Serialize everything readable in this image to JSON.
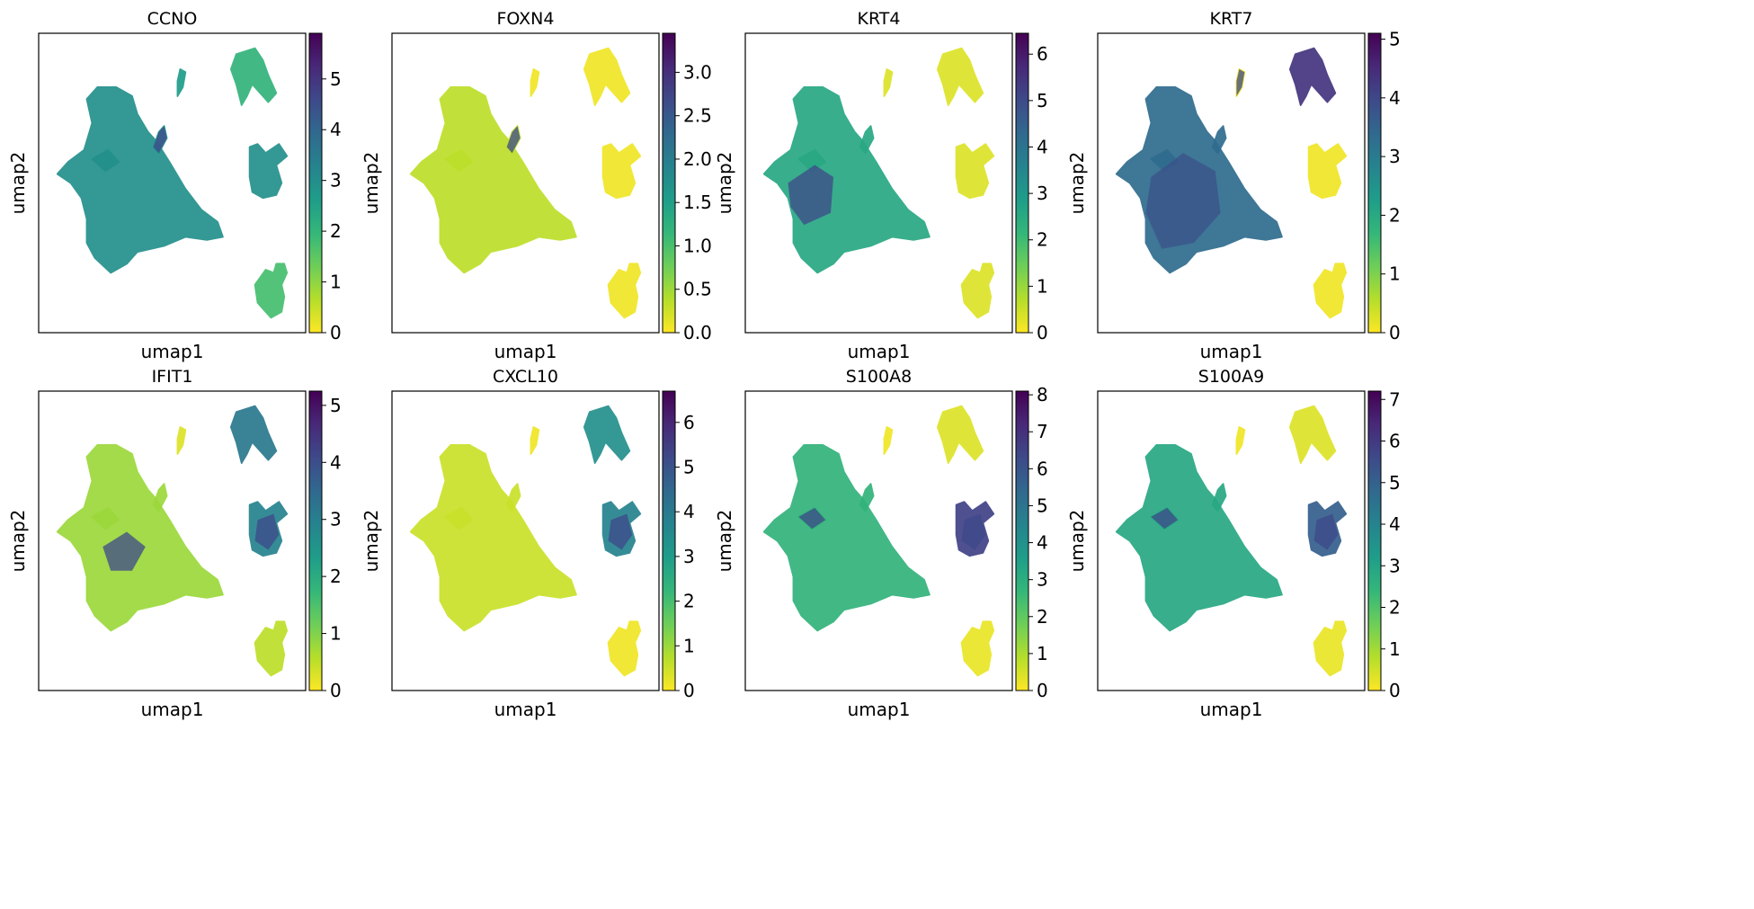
{
  "chart_data": [
    {
      "type": "scatter",
      "title": "CCNO",
      "xlabel": "umap1",
      "ylabel": "umap2",
      "colorbar_range": [
        0,
        5.9
      ],
      "colorbar_ticks": [
        "0",
        "1",
        "2",
        "3",
        "4",
        "5"
      ],
      "colorbar_values": [
        0,
        1,
        2,
        3,
        4,
        5
      ],
      "base_level": 0.5,
      "cluster_levels": [
        0.45,
        0.35,
        0.5,
        0.3
      ],
      "hotspots": [
        "thin branch of main cluster"
      ]
    },
    {
      "type": "scatter",
      "title": "FOXN4",
      "xlabel": "umap1",
      "ylabel": "umap2",
      "colorbar_range": [
        0,
        3.45
      ],
      "colorbar_ticks": [
        "0.0",
        "0.5",
        "1.0",
        "1.5",
        "2.0",
        "2.5",
        "3.0"
      ],
      "colorbar_values": [
        0,
        0.5,
        1.0,
        1.5,
        2.0,
        2.5,
        3.0
      ],
      "base_level": 0.1,
      "cluster_levels": [
        0.02,
        0.02,
        0.02,
        0.02
      ],
      "hotspots": [
        "thin branch of main cluster"
      ]
    },
    {
      "type": "scatter",
      "title": "KRT4",
      "xlabel": "umap1",
      "ylabel": "umap2",
      "colorbar_range": [
        0,
        6.45
      ],
      "colorbar_ticks": [
        "0",
        "1",
        "2",
        "3",
        "4",
        "5",
        "6"
      ],
      "colorbar_values": [
        0,
        1,
        2,
        3,
        4,
        5,
        6
      ],
      "base_level": 0.4,
      "cluster_levels": [
        0.05,
        0.05,
        0.05,
        0.05
      ],
      "hotspots": [
        "left part of main cluster"
      ]
    },
    {
      "type": "scatter",
      "title": "KRT7",
      "xlabel": "umap1",
      "ylabel": "umap2",
      "colorbar_range": [
        0,
        5.1
      ],
      "colorbar_ticks": [
        "0",
        "1",
        "2",
        "3",
        "4",
        "5"
      ],
      "colorbar_values": [
        0,
        1,
        2,
        3,
        4,
        5
      ],
      "base_level": 0.65,
      "cluster_levels": [
        0.02,
        0.85,
        0.02,
        0.02
      ],
      "hotspots": [
        "main cluster body",
        "small island"
      ]
    },
    {
      "type": "scatter",
      "title": "IFIT1",
      "xlabel": "umap1",
      "ylabel": "umap2",
      "colorbar_range": [
        0,
        5.25
      ],
      "colorbar_ticks": [
        "0",
        "1",
        "2",
        "3",
        "4",
        "5"
      ],
      "colorbar_values": [
        0,
        1,
        2,
        3,
        4,
        5
      ],
      "base_level": 0.15,
      "cluster_levels": [
        0.05,
        0.6,
        0.55,
        0.1
      ],
      "hotspots": [
        "center of main cluster",
        "right middle cluster"
      ]
    },
    {
      "type": "scatter",
      "title": "CXCL10",
      "xlabel": "umap1",
      "ylabel": "umap2",
      "colorbar_range": [
        0,
        6.7
      ],
      "colorbar_ticks": [
        "0",
        "1",
        "2",
        "3",
        "4",
        "5",
        "6"
      ],
      "colorbar_values": [
        0,
        1,
        2,
        3,
        4,
        5,
        6
      ],
      "base_level": 0.08,
      "cluster_levels": [
        0.02,
        0.5,
        0.55,
        0.02
      ],
      "hotspots": [
        "right middle cluster"
      ]
    },
    {
      "type": "scatter",
      "title": "S100A8",
      "xlabel": "umap1",
      "ylabel": "umap2",
      "colorbar_range": [
        0,
        8.1
      ],
      "colorbar_ticks": [
        "0",
        "1",
        "2",
        "3",
        "4",
        "5",
        "6",
        "7",
        "8"
      ],
      "colorbar_values": [
        0,
        1,
        2,
        3,
        4,
        5,
        6,
        7,
        8
      ],
      "base_level": 0.35,
      "cluster_levels": [
        0.02,
        0.05,
        0.8,
        0.03
      ],
      "hotspots": [
        "right middle cluster",
        "left branch"
      ]
    },
    {
      "type": "scatter",
      "title": "S100A9",
      "xlabel": "umap1",
      "ylabel": "umap2",
      "colorbar_range": [
        0,
        7.2
      ],
      "colorbar_ticks": [
        "0",
        "1",
        "2",
        "3",
        "4",
        "5",
        "6",
        "7"
      ],
      "colorbar_values": [
        0,
        1,
        2,
        3,
        4,
        5,
        6,
        7
      ],
      "base_level": 0.4,
      "cluster_levels": [
        0.02,
        0.05,
        0.7,
        0.03
      ],
      "hotspots": [
        "right middle cluster",
        "left branch"
      ]
    }
  ],
  "colormap": "viridis_r",
  "colors": {
    "low": "#fde725",
    "mid": "#21918c",
    "high": "#440154",
    "stops": [
      "#440154",
      "#482878",
      "#3e4989",
      "#31688e",
      "#26828e",
      "#1f9e89",
      "#35b779",
      "#6ece58",
      "#b5de2b",
      "#fde725"
    ]
  }
}
